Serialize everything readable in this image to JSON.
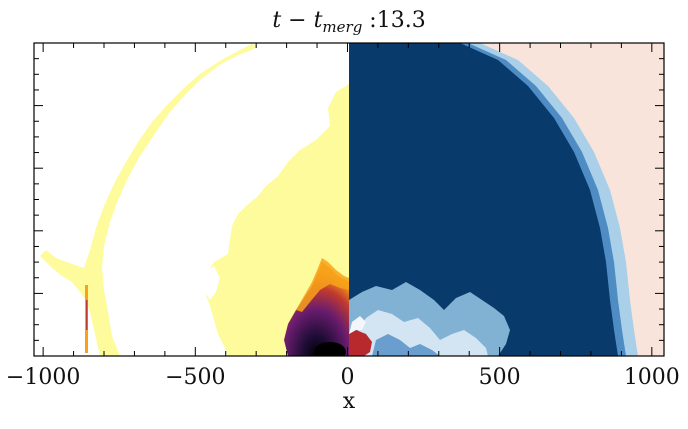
{
  "chart_data": {
    "type": "heatmap",
    "title_parts": {
      "var_t": "t",
      "minus": " − ",
      "var_t2": "t",
      "subscript": "merg",
      "sep": " :",
      "value": "13.3"
    },
    "xlabel": "x",
    "ylabel": "",
    "xlim": [
      -1030,
      1040
    ],
    "x_ticks": [
      {
        "value": -1000,
        "label": "−1000"
      },
      {
        "value": -500,
        "label": "−500"
      },
      {
        "value": 0,
        "label": "0"
      },
      {
        "value": 500,
        "label": "500"
      },
      {
        "value": 1000,
        "label": "1000"
      }
    ],
    "left_panel": {
      "x_range": [
        -1030,
        0
      ],
      "colormap": "inferno",
      "colors": {
        "background": "#ffffff",
        "shell": "#fdfb9b",
        "orange": "#f7a21a",
        "red": "#c23a2e",
        "purple": "#6a1c6e",
        "dark": "#1b0c33",
        "core": "#000000"
      }
    },
    "right_panel": {
      "x_range": [
        0,
        1040
      ],
      "colormap": "RdBu",
      "colors": {
        "interior": "#083a6b",
        "mid": "#2a6aa8",
        "edge": "#8fc0e0",
        "exterior": "#f9e4dc",
        "whitish": "#f2f6fa",
        "red": "#b8292e"
      }
    }
  }
}
